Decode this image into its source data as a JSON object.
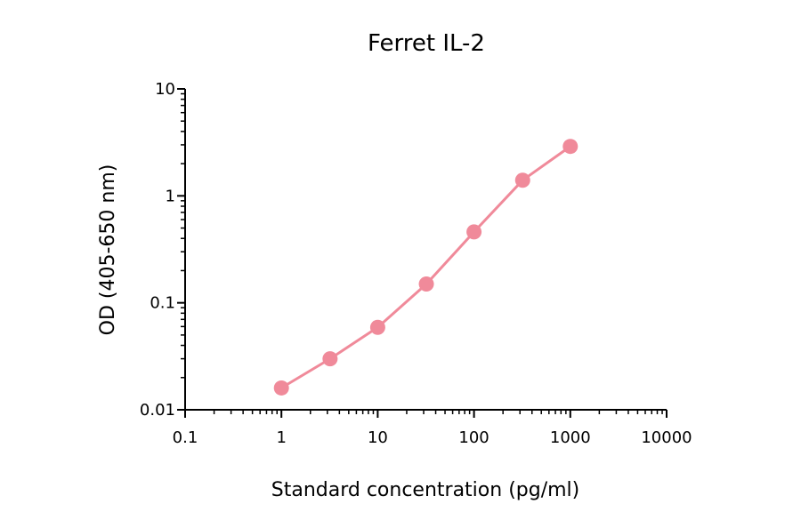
{
  "chart_data": {
    "type": "line",
    "title": "Ferret IL-2",
    "xlabel": "Standard concentration (pg/ml)",
    "ylabel": "OD (405-650 nm)",
    "xscale": "log",
    "yscale": "log",
    "xlim": [
      0.1,
      10000
    ],
    "ylim": [
      0.01,
      10
    ],
    "x_ticks": [
      "0.1",
      "1",
      "10",
      "100",
      "1000",
      "10000"
    ],
    "y_ticks": [
      "0.01",
      "0.1",
      "1",
      "10"
    ],
    "grid": false,
    "series_color": "#f08a9a",
    "series": [
      {
        "x": [
          1,
          3.2,
          10,
          32,
          100,
          320,
          1000
        ],
        "y": [
          0.016,
          0.03,
          0.059,
          0.15,
          0.46,
          1.4,
          2.9
        ]
      }
    ]
  }
}
